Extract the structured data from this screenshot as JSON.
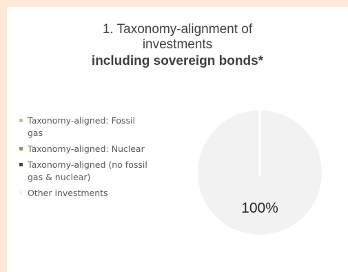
{
  "chart_data": {
    "type": "pie",
    "title": [
      "1. Taxonomy-alignment of",
      "investments",
      "including sovereign bonds*"
    ],
    "legend_placement": "left",
    "slices": [
      {
        "name": "Taxonomy-aligned: Fossil gas",
        "value": 0,
        "color": "#a9d18e"
      },
      {
        "name": "Taxonomy-aligned: Nuclear",
        "value": 0,
        "color": "#70ad47"
      },
      {
        "name": "Taxonomy-aligned (no fossil gas & nuclear)",
        "value": 0,
        "color": "#375623"
      },
      {
        "name": "Other investments",
        "value": 100,
        "color": "#f2f2f2"
      }
    ],
    "data_labels": [
      "100%"
    ]
  }
}
